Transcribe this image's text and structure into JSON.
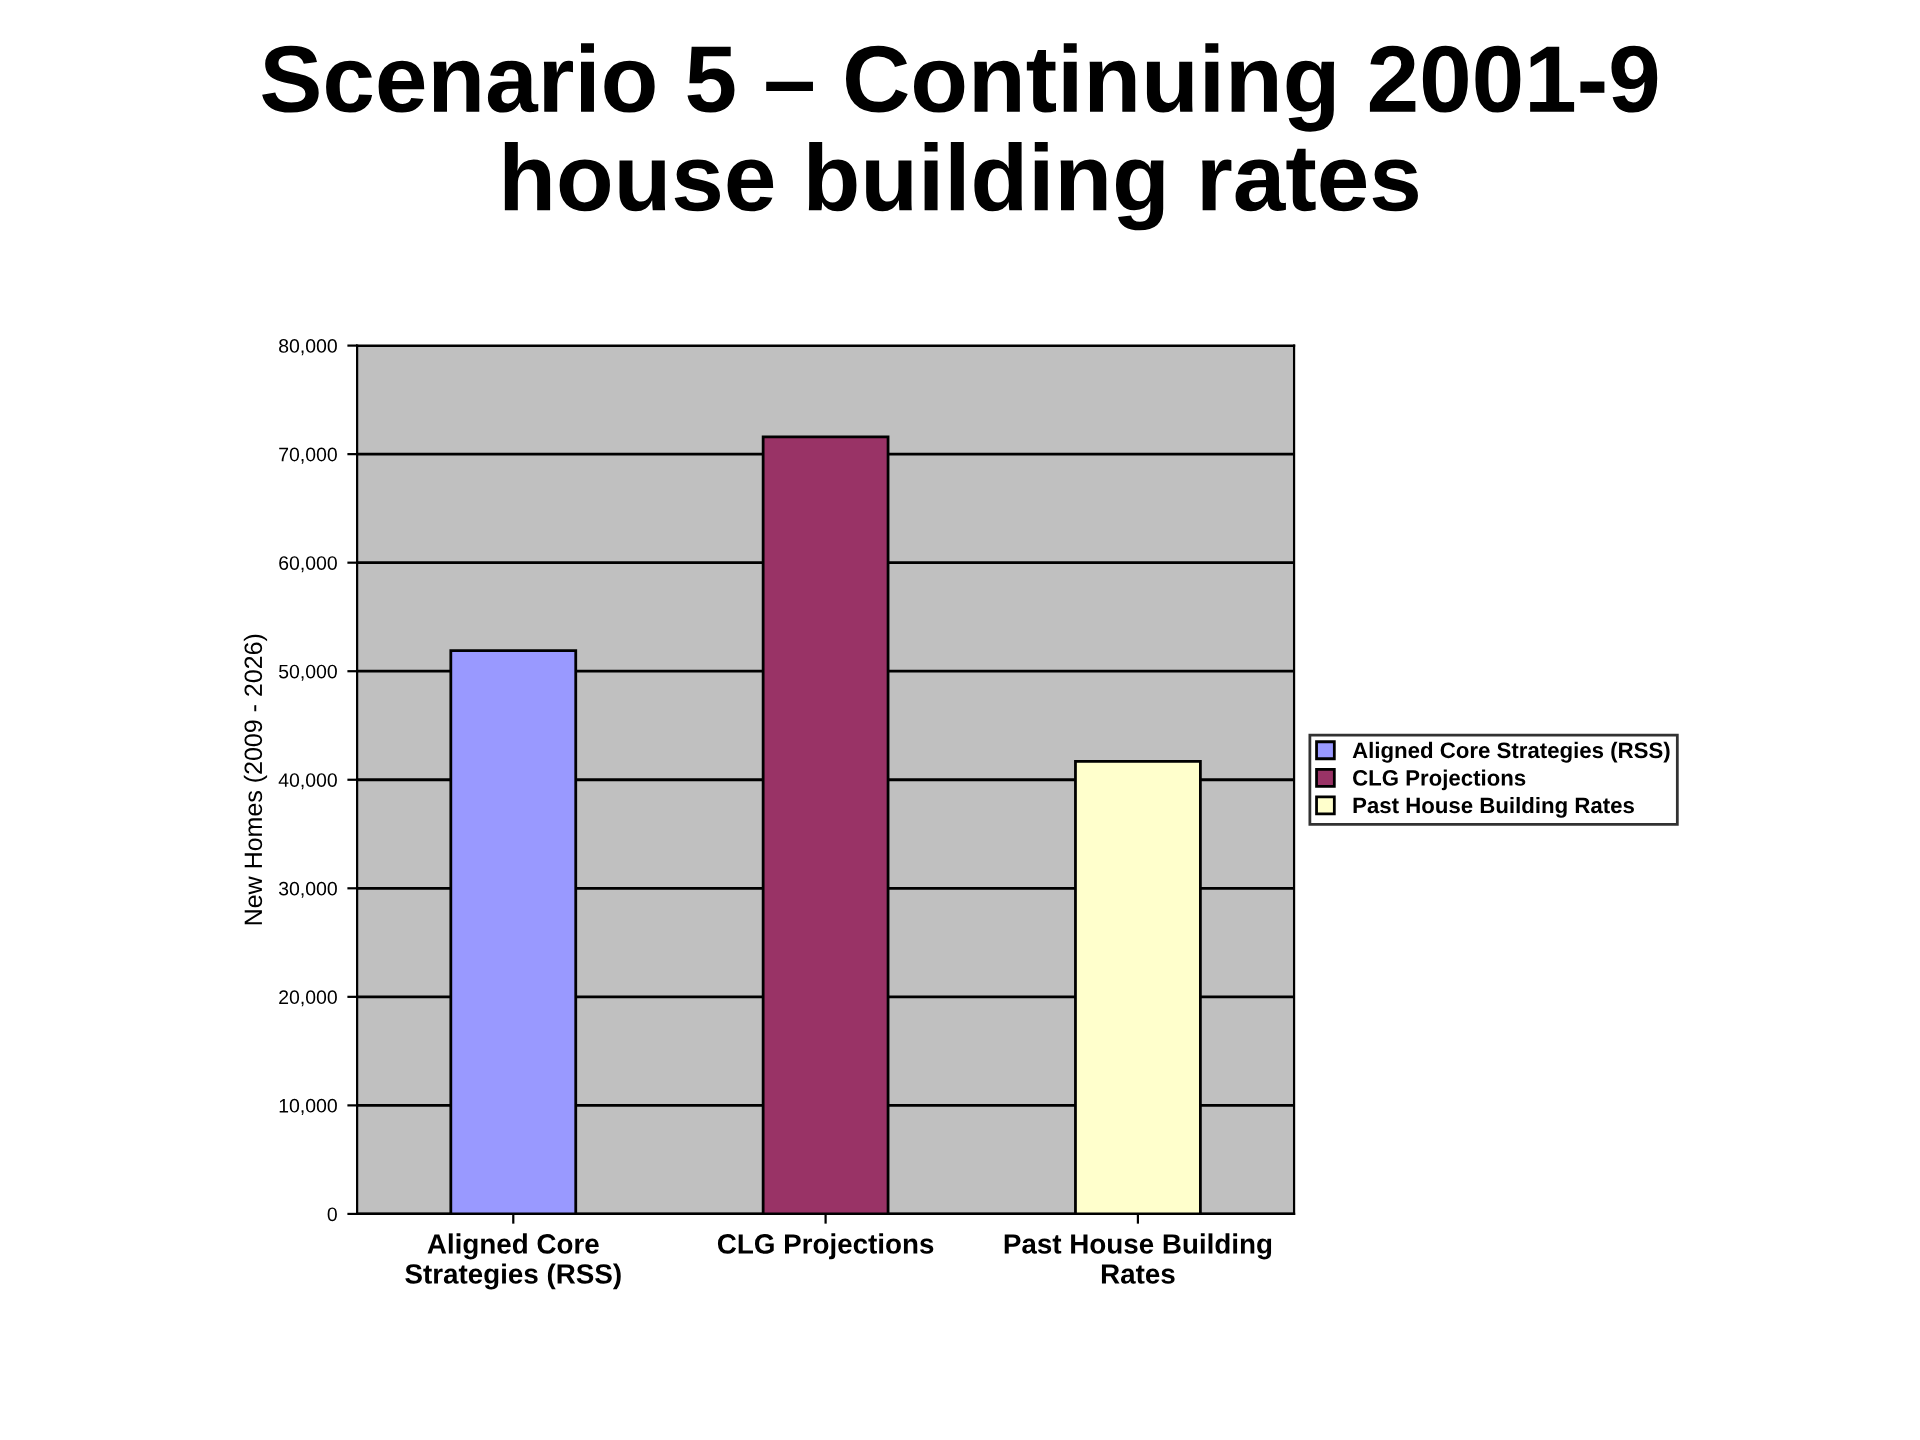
{
  "chart_data": {
    "type": "bar",
    "title": "Scenario 5 – Continuing 2001-9\nhouse building rates",
    "ylabel": "New Homes (2009 - 2026)",
    "categories": [
      "Aligned Core\nStrategies (RSS)",
      "CLG Projections",
      "Past House Building\nRates"
    ],
    "series": [
      {
        "name": "Aligned Core Strategies (RSS)",
        "color": "#9999ff",
        "values": [
          51900,
          null,
          null
        ]
      },
      {
        "name": "CLG Projections",
        "color": "#993366",
        "values": [
          null,
          71600,
          null
        ]
      },
      {
        "name": "Past House Building Rates",
        "color": "#ffffcc",
        "values": [
          null,
          null,
          41700
        ]
      }
    ],
    "ylim": [
      0,
      80000
    ],
    "yticks": [
      {
        "value": 0,
        "label": "0"
      },
      {
        "value": 10000,
        "label": "10,000"
      },
      {
        "value": 20000,
        "label": "20,000"
      },
      {
        "value": 30000,
        "label": "30,000"
      },
      {
        "value": 40000,
        "label": "40,000"
      },
      {
        "value": 50000,
        "label": "50,000"
      },
      {
        "value": 60000,
        "label": "60,000"
      },
      {
        "value": 70000,
        "label": "70,000"
      },
      {
        "value": 80000,
        "label": "80,000"
      }
    ],
    "grid": "y",
    "legend": "right"
  }
}
